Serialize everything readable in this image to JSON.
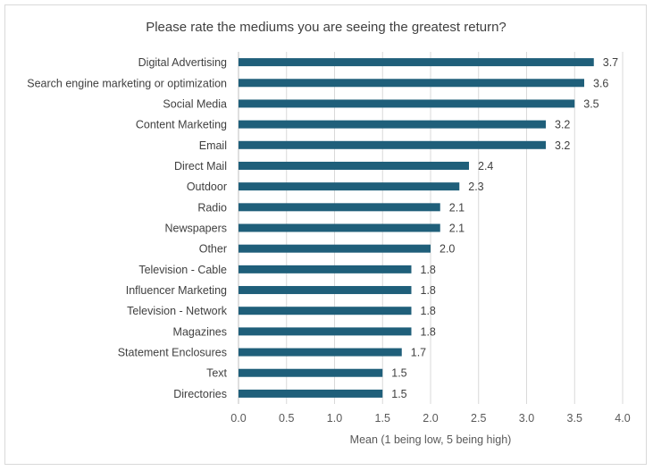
{
  "chart_data": {
    "type": "bar",
    "orientation": "horizontal",
    "title": "Please rate the mediums you are seeing the greatest return?",
    "xlabel": "Mean (1 being low, 5 being high)",
    "ylabel": "",
    "xlim": [
      0,
      4.0
    ],
    "xticks": [
      "0.0",
      "0.5",
      "1.0",
      "1.5",
      "2.0",
      "2.5",
      "3.0",
      "3.5",
      "4.0"
    ],
    "grid": true,
    "legend": "none",
    "bar_color": "#1f5f7a",
    "categories": [
      "Digital Advertising",
      "Search engine marketing or optimization",
      "Social Media",
      "Content Marketing",
      "Email",
      "Direct Mail",
      "Outdoor",
      "Radio",
      "Newspapers",
      "Other",
      "Television - Cable",
      "Influencer Marketing",
      "Television - Network",
      "Magazines",
      "Statement Enclosures",
      "Text",
      "Directories"
    ],
    "values": [
      3.7,
      3.6,
      3.5,
      3.2,
      3.2,
      2.4,
      2.3,
      2.1,
      2.1,
      2.0,
      1.8,
      1.8,
      1.8,
      1.8,
      1.7,
      1.5,
      1.5
    ],
    "data_labels": [
      "3.7",
      "3.6",
      "3.5",
      "3.2",
      "3.2",
      "2.4",
      "2.3",
      "2.1",
      "2.1",
      "2.0",
      "1.8",
      "1.8",
      "1.8",
      "1.8",
      "1.7",
      "1.5",
      "1.5"
    ]
  }
}
